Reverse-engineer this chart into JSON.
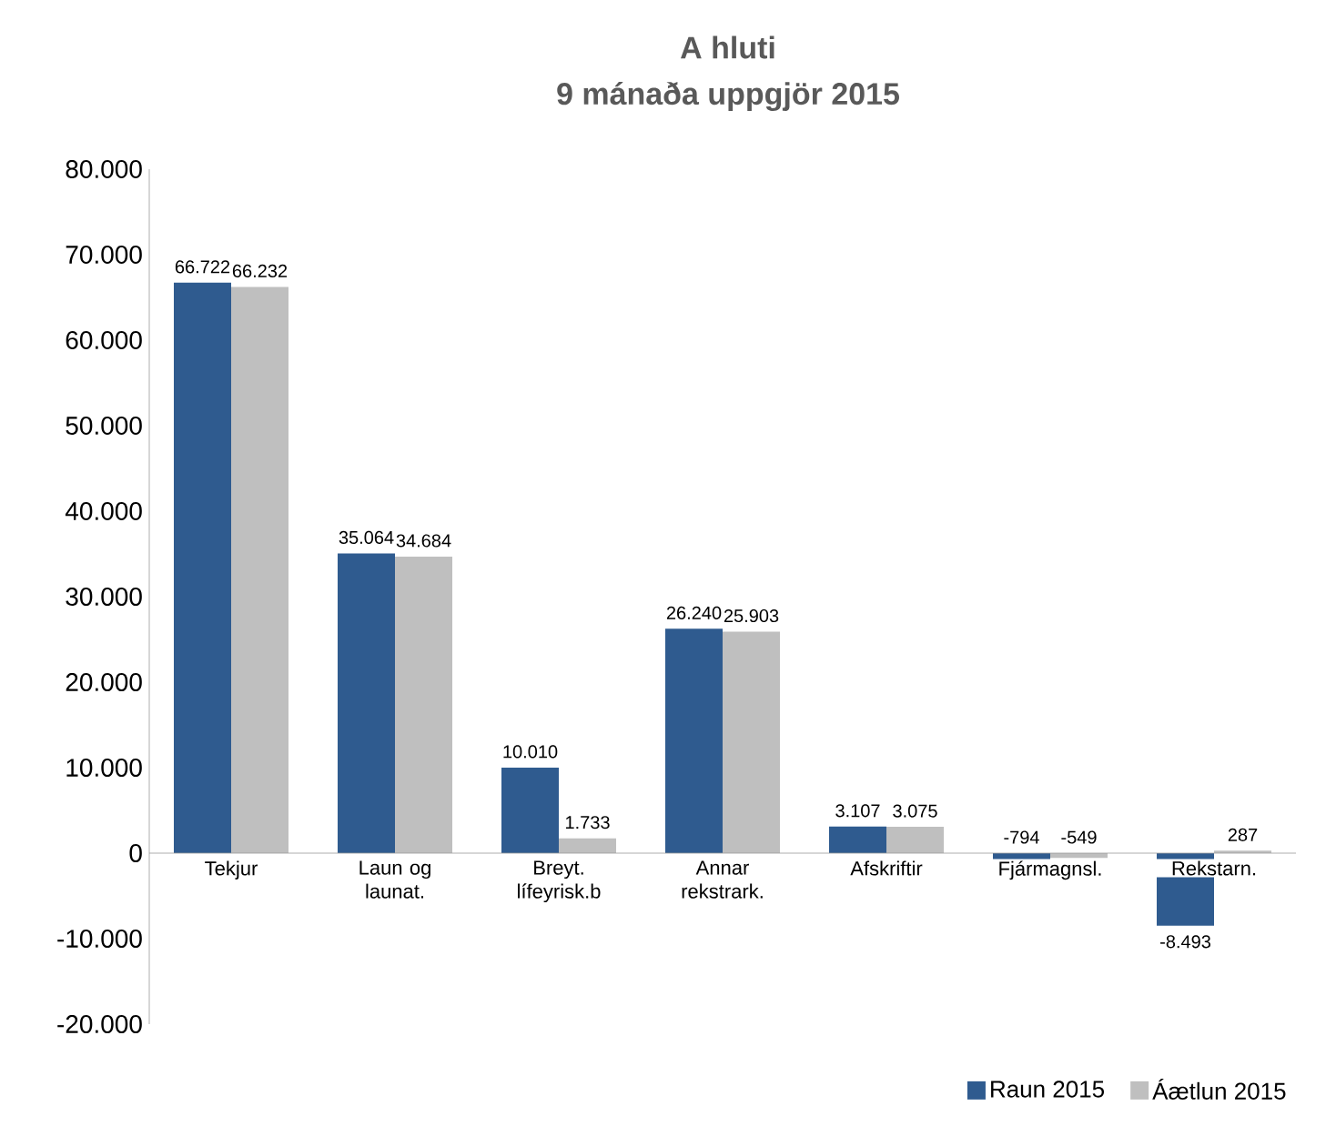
{
  "chart_data": {
    "type": "bar",
    "title": "A hluti",
    "subtitle": "9 mánaða uppgjör 2015",
    "categories": [
      "Tekjur",
      "Laun og launat.",
      "Breyt. lífeyrisk.b",
      "Annar rekstrark.",
      "Afskriftir",
      "Fjármagnsl.",
      "Rekstarn."
    ],
    "series": [
      {
        "name": "Raun 2015",
        "color": "#2f5b8f",
        "values": [
          66722,
          35064,
          10010,
          26240,
          3107,
          -794,
          -8493
        ],
        "value_labels": [
          "66.722",
          "35.064",
          "10.010",
          "26.240",
          "3.107",
          "-794",
          "-8.493"
        ]
      },
      {
        "name": "Áætlun 2015",
        "color": "#bfbfbf",
        "values": [
          66232,
          34684,
          1733,
          25903,
          3075,
          -549,
          287
        ],
        "value_labels": [
          "66.232",
          "34.684",
          "1.733",
          "25.903",
          "3.075",
          "-549",
          "287"
        ]
      }
    ],
    "ylim": [
      -20000,
      80000
    ],
    "yticks": [
      {
        "value": -20000,
        "label": "-20.000"
      },
      {
        "value": -10000,
        "label": "-10.000"
      },
      0,
      {
        "value": 10000,
        "label": "10.000"
      },
      {
        "value": 20000,
        "label": "20.000"
      },
      {
        "value": 30000,
        "label": "30.000"
      },
      {
        "value": 40000,
        "label": "40.000"
      },
      {
        "value": 50000,
        "label": "50.000"
      },
      {
        "value": 60000,
        "label": "60.000"
      },
      {
        "value": 70000,
        "label": "70.000"
      },
      {
        "value": 80000,
        "label": "80.000"
      }
    ],
    "grid": false,
    "legend": "bottom right"
  }
}
